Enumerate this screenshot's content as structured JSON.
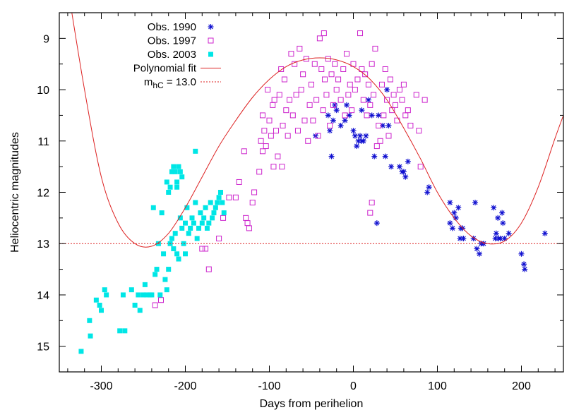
{
  "chart_data": {
    "type": "scatter",
    "title": "",
    "xlabel": "Days from perihelion",
    "ylabel": "Heliocentric magnitudes",
    "xlim": [
      -350,
      250
    ],
    "ylim": [
      8.5,
      15.5
    ],
    "y_inverted": true,
    "x_ticks": [
      -300,
      -200,
      -100,
      0,
      100,
      200
    ],
    "x_tick_labels": [
      "-300",
      "-200",
      "-100",
      "0",
      "100",
      "200"
    ],
    "y_ticks": [
      9,
      10,
      11,
      12,
      13,
      14,
      15
    ],
    "y_tick_labels": [
      "9",
      "10",
      "11",
      "12",
      "13",
      "14",
      "15"
    ],
    "grid": false,
    "legend_position": "top-left",
    "series": [
      {
        "name": "Obs. 1990",
        "marker": "asterisk",
        "color": "#1010d0",
        "points": [
          [
            -45,
            10.9
          ],
          [
            -30,
            10.5
          ],
          [
            -28,
            10.8
          ],
          [
            -26,
            11.3
          ],
          [
            -24,
            10.6
          ],
          [
            -22,
            10.3
          ],
          [
            -20,
            10.4
          ],
          [
            -15,
            10.7
          ],
          [
            -10,
            10.6
          ],
          [
            -8,
            10.3
          ],
          [
            -5,
            10.5
          ],
          [
            0,
            10.8
          ],
          [
            2,
            10.9
          ],
          [
            4,
            11.1
          ],
          [
            6,
            11.0
          ],
          [
            8,
            10.9
          ],
          [
            10,
            11.0
          ],
          [
            10,
            10.4
          ],
          [
            12,
            11.0
          ],
          [
            15,
            10.9
          ],
          [
            18,
            10.2
          ],
          [
            22,
            10.5
          ],
          [
            25,
            11.3
          ],
          [
            28,
            12.6
          ],
          [
            30,
            10.5
          ],
          [
            35,
            10.7
          ],
          [
            38,
            11.3
          ],
          [
            40,
            10.0
          ],
          [
            42,
            10.7
          ],
          [
            45,
            11.5
          ],
          [
            55,
            11.5
          ],
          [
            58,
            11.6
          ],
          [
            60,
            11.6
          ],
          [
            62,
            11.7
          ],
          [
            65,
            11.4
          ],
          [
            88,
            12.0
          ],
          [
            90,
            11.9
          ],
          [
            115,
            12.2
          ],
          [
            115,
            12.6
          ],
          [
            118,
            12.7
          ],
          [
            120,
            12.4
          ],
          [
            122,
            12.5
          ],
          [
            125,
            12.3
          ],
          [
            127,
            12.9
          ],
          [
            128,
            12.7
          ],
          [
            130,
            12.7
          ],
          [
            131,
            12.9
          ],
          [
            143,
            12.9
          ],
          [
            145,
            12.2
          ],
          [
            147,
            13.1
          ],
          [
            150,
            13.2
          ],
          [
            152,
            13.0
          ],
          [
            155,
            13.0
          ],
          [
            167,
            12.3
          ],
          [
            169,
            12.9
          ],
          [
            170,
            12.8
          ],
          [
            172,
            12.5
          ],
          [
            173,
            12.9
          ],
          [
            175,
            12.9
          ],
          [
            177,
            12.4
          ],
          [
            178,
            12.6
          ],
          [
            180,
            12.9
          ],
          [
            185,
            12.8
          ],
          [
            200,
            13.2
          ],
          [
            203,
            13.4
          ],
          [
            204,
            13.5
          ],
          [
            228,
            12.8
          ]
        ]
      },
      {
        "name": "Obs. 1997",
        "marker": "open-square",
        "color": "#cc22cc",
        "points": [
          [
            -236,
            14.2
          ],
          [
            -229,
            14.1
          ],
          [
            -180,
            13.1
          ],
          [
            -176,
            13.1
          ],
          [
            -172,
            13.5
          ],
          [
            -160,
            12.9
          ],
          [
            -155,
            12.5
          ],
          [
            -148,
            12.1
          ],
          [
            -140,
            12.1
          ],
          [
            -130,
            11.2
          ],
          [
            -128,
            12.5
          ],
          [
            -126,
            12.6
          ],
          [
            -124,
            12.7
          ],
          [
            -120,
            12.2
          ],
          [
            -118,
            12.0
          ],
          [
            -136,
            11.8
          ],
          [
            -110,
            11.0
          ],
          [
            -108,
            10.5
          ],
          [
            -106,
            10.8
          ],
          [
            -104,
            11.1
          ],
          [
            -102,
            10.0
          ],
          [
            -100,
            10.6
          ],
          [
            -98,
            10.9
          ],
          [
            -96,
            10.3
          ],
          [
            -95,
            11.5
          ],
          [
            -94,
            10.2
          ],
          [
            -92,
            10.8
          ],
          [
            -90,
            11.3
          ],
          [
            -88,
            10.1
          ],
          [
            -86,
            9.6
          ],
          [
            -85,
            11.5
          ],
          [
            -84,
            10.7
          ],
          [
            -82,
            9.8
          ],
          [
            -80,
            10.4
          ],
          [
            -78,
            10.9
          ],
          [
            -76,
            10.2
          ],
          [
            -74,
            9.3
          ],
          [
            -72,
            10.5
          ],
          [
            -70,
            9.5
          ],
          [
            -68,
            10.1
          ],
          [
            -66,
            10.8
          ],
          [
            -64,
            9.2
          ],
          [
            -62,
            10.0
          ],
          [
            -60,
            9.7
          ],
          [
            -58,
            10.6
          ],
          [
            -56,
            9.4
          ],
          [
            -54,
            11.0
          ],
          [
            -52,
            10.3
          ],
          [
            -50,
            9.9
          ],
          [
            -48,
            10.6
          ],
          [
            -46,
            9.5
          ],
          [
            -44,
            10.2
          ],
          [
            -42,
            10.9
          ],
          [
            -40,
            9.0
          ],
          [
            -38,
            9.6
          ],
          [
            -36,
            10.4
          ],
          [
            -35,
            8.9
          ],
          [
            -34,
            9.8
          ],
          [
            -32,
            10.1
          ],
          [
            -30,
            9.4
          ],
          [
            -28,
            10.7
          ],
          [
            -26,
            9.7
          ],
          [
            -24,
            10.3
          ],
          [
            -22,
            9.5
          ],
          [
            -20,
            10.0
          ],
          [
            -18,
            9.8
          ],
          [
            -15,
            10.2
          ],
          [
            -12,
            9.6
          ],
          [
            -10,
            10.5
          ],
          [
            -8,
            9.3
          ],
          [
            -6,
            10.1
          ],
          [
            -4,
            9.9
          ],
          [
            -2,
            10.4
          ],
          [
            0,
            9.5
          ],
          [
            2,
            10.0
          ],
          [
            5,
            9.8
          ],
          [
            8,
            8.9
          ],
          [
            10,
            9.6
          ],
          [
            12,
            10.2
          ],
          [
            14,
            9.7
          ],
          [
            16,
            10.5
          ],
          [
            18,
            9.9
          ],
          [
            20,
            10.3
          ],
          [
            22,
            9.5
          ],
          [
            24,
            10.1
          ],
          [
            26,
            9.2
          ],
          [
            28,
            11.1
          ],
          [
            30,
            10.7
          ],
          [
            32,
            11.0
          ],
          [
            34,
            9.9
          ],
          [
            36,
            10.5
          ],
          [
            38,
            9.6
          ],
          [
            40,
            10.2
          ],
          [
            42,
            10.9
          ],
          [
            44,
            9.8
          ],
          [
            46,
            10.4
          ],
          [
            48,
            10.1
          ],
          [
            50,
            10.3
          ],
          [
            52,
            10.6
          ],
          [
            55,
            10.0
          ],
          [
            58,
            10.2
          ],
          [
            60,
            9.9
          ],
          [
            62,
            10.5
          ],
          [
            65,
            10.4
          ],
          [
            68,
            10.7
          ],
          [
            75,
            10.1
          ],
          [
            78,
            10.8
          ],
          [
            80,
            11.5
          ],
          [
            85,
            10.2
          ],
          [
            20,
            12.4
          ],
          [
            22,
            12.2
          ],
          [
            -112,
            11.6
          ],
          [
            -108,
            11.2
          ]
        ]
      },
      {
        "name": "Obs. 2003",
        "marker": "filled-square",
        "color": "#00e6e6",
        "points": [
          [
            -324,
            15.1
          ],
          [
            -314,
            14.5
          ],
          [
            -313,
            14.8
          ],
          [
            -306,
            14.1
          ],
          [
            -302,
            14.2
          ],
          [
            -300,
            14.3
          ],
          [
            -296,
            13.9
          ],
          [
            -294,
            14.0
          ],
          [
            -278,
            14.7
          ],
          [
            -274,
            14.0
          ],
          [
            -272,
            14.7
          ],
          [
            -264,
            13.9
          ],
          [
            -260,
            14.2
          ],
          [
            -256,
            14.0
          ],
          [
            -254,
            14.3
          ],
          [
            -250,
            14.0
          ],
          [
            -248,
            13.8
          ],
          [
            -246,
            14.0
          ],
          [
            -242,
            14.0
          ],
          [
            -240,
            14.0
          ],
          [
            -238,
            12.3
          ],
          [
            -236,
            13.6
          ],
          [
            -234,
            13.5
          ],
          [
            -232,
            13.0
          ],
          [
            -230,
            14.0
          ],
          [
            -228,
            12.4
          ],
          [
            -226,
            13.2
          ],
          [
            -224,
            13.7
          ],
          [
            -222,
            13.9
          ],
          [
            -220,
            13.5
          ],
          [
            -218,
            13.0
          ],
          [
            -216,
            12.9
          ],
          [
            -214,
            13.1
          ],
          [
            -212,
            12.8
          ],
          [
            -210,
            13.2
          ],
          [
            -208,
            13.3
          ],
          [
            -206,
            12.5
          ],
          [
            -204,
            12.7
          ],
          [
            -202,
            13.0
          ],
          [
            -200,
            12.6
          ],
          [
            -198,
            12.3
          ],
          [
            -196,
            12.8
          ],
          [
            -194,
            12.7
          ],
          [
            -192,
            12.5
          ],
          [
            -190,
            12.6
          ],
          [
            -188,
            12.2
          ],
          [
            -186,
            12.9
          ],
          [
            -184,
            12.7
          ],
          [
            -182,
            12.4
          ],
          [
            -180,
            12.6
          ],
          [
            -178,
            12.5
          ],
          [
            -176,
            12.3
          ],
          [
            -174,
            12.7
          ],
          [
            -172,
            12.6
          ],
          [
            -170,
            12.2
          ],
          [
            -168,
            12.5
          ],
          [
            -166,
            12.4
          ],
          [
            -164,
            12.3
          ],
          [
            -162,
            12.2
          ],
          [
            -160,
            12.1
          ],
          [
            -158,
            12.0
          ],
          [
            -156,
            12.2
          ],
          [
            -154,
            12.4
          ],
          [
            -188,
            11.2
          ],
          [
            -216,
            11.6
          ],
          [
            -214,
            11.5
          ],
          [
            -212,
            11.6
          ],
          [
            -210,
            11.8
          ],
          [
            -208,
            11.5
          ],
          [
            -206,
            11.6
          ],
          [
            -204,
            11.7
          ],
          [
            -218,
            11.9
          ],
          [
            -220,
            12.0
          ],
          [
            -222,
            11.8
          ],
          [
            -210,
            11.9
          ],
          [
            -200,
            13.2
          ]
        ]
      },
      {
        "name": "Polynomial fit",
        "line_style": "solid",
        "color": "#dd2222",
        "points": [
          [
            -340,
            8.0
          ],
          [
            -320,
            10.0
          ],
          [
            -300,
            11.7
          ],
          [
            -280,
            12.6
          ],
          [
            -260,
            13.0
          ],
          [
            -240,
            13.05
          ],
          [
            -220,
            12.8
          ],
          [
            -200,
            12.3
          ],
          [
            -180,
            11.7
          ],
          [
            -160,
            11.1
          ],
          [
            -140,
            10.6
          ],
          [
            -120,
            10.15
          ],
          [
            -100,
            9.8
          ],
          [
            -80,
            9.55
          ],
          [
            -60,
            9.42
          ],
          [
            -40,
            9.38
          ],
          [
            -20,
            9.42
          ],
          [
            0,
            9.55
          ],
          [
            20,
            9.8
          ],
          [
            40,
            10.2
          ],
          [
            60,
            10.75
          ],
          [
            80,
            11.35
          ],
          [
            100,
            12.0
          ],
          [
            120,
            12.5
          ],
          [
            140,
            12.85
          ],
          [
            160,
            13.0
          ],
          [
            180,
            12.95
          ],
          [
            200,
            12.6
          ],
          [
            220,
            11.9
          ],
          [
            240,
            10.95
          ],
          [
            250,
            10.5
          ]
        ]
      },
      {
        "name": "m",
        "name_sub": "hC",
        "name_suffix": " = 13.0",
        "line_style": "dotted",
        "color": "#dd2222",
        "points": [
          [
            -350,
            13.0
          ],
          [
            250,
            13.0
          ]
        ]
      }
    ]
  }
}
